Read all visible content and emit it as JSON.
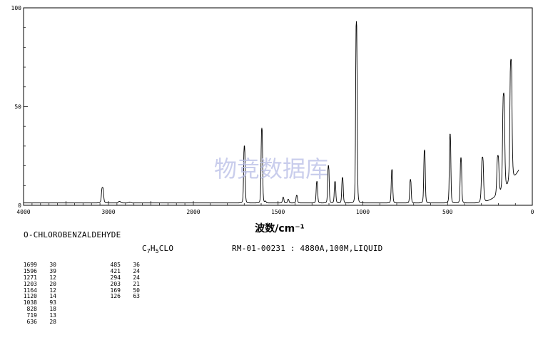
{
  "chart_data": {
    "type": "line",
    "xlabel": "波数/cm⁻¹",
    "x_ticks": [
      "4000",
      "3000",
      "2000",
      "1500",
      "1000",
      "500",
      "0"
    ],
    "y_ticks": [
      "100",
      "50",
      "0"
    ],
    "xlim": [
      4000,
      0
    ],
    "ylim": [
      0,
      100
    ],
    "grid": false,
    "watermark": "物竞数据库",
    "compound_name": "O-CHLOROBENZALDEHYDE",
    "formula": {
      "c": "C",
      "n1": "7",
      "h": "H",
      "n2": "5",
      "rest": "CLO"
    },
    "spectrum_id": "RM-01-00231 : 4880A,100M,LIQUID",
    "peaks": [
      {
        "x": 3070,
        "y": 9
      },
      {
        "x": 2870,
        "y": 2
      },
      {
        "x": 2750,
        "y": 1.5
      },
      {
        "x": 1699,
        "y": 30
      },
      {
        "x": 1596,
        "y": 39
      },
      {
        "x": 1575,
        "y": 2
      },
      {
        "x": 1470,
        "y": 4
      },
      {
        "x": 1440,
        "y": 3
      },
      {
        "x": 1390,
        "y": 5
      },
      {
        "x": 1271,
        "y": 12
      },
      {
        "x": 1203,
        "y": 20
      },
      {
        "x": 1164,
        "y": 12
      },
      {
        "x": 1120,
        "y": 14
      },
      {
        "x": 1038,
        "y": 93
      },
      {
        "x": 828,
        "y": 18
      },
      {
        "x": 719,
        "y": 13
      },
      {
        "x": 636,
        "y": 28
      },
      {
        "x": 485,
        "y": 36
      },
      {
        "x": 421,
        "y": 24
      },
      {
        "x": 294,
        "y": 24
      },
      {
        "x": 203,
        "y": 21
      },
      {
        "x": 169,
        "y": 50
      },
      {
        "x": 126,
        "y": 63
      }
    ],
    "peak_table": {
      "column1": [
        [
          "1699",
          "30"
        ],
        [
          "1596",
          "39"
        ],
        [
          "1271",
          "12"
        ],
        [
          "1203",
          "20"
        ],
        [
          "1164",
          "12"
        ],
        [
          "1120",
          "14"
        ],
        [
          "1038",
          "93"
        ],
        [
          "828",
          "18"
        ],
        [
          "719",
          "13"
        ],
        [
          "636",
          "28"
        ]
      ],
      "column2": [
        [
          "485",
          "36"
        ],
        [
          "421",
          "24"
        ],
        [
          "294",
          "24"
        ],
        [
          "203",
          "21"
        ],
        [
          "169",
          "50"
        ],
        [
          "126",
          "63"
        ]
      ]
    }
  }
}
